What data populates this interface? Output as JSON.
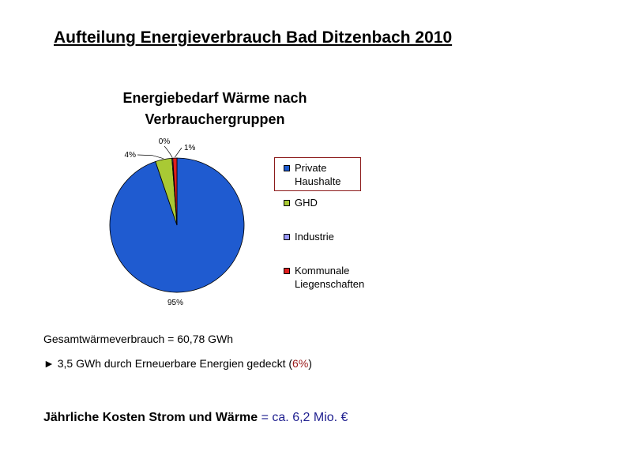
{
  "slide": {
    "title": "Aufteilung Energieverbrauch Bad Ditzenbach 2010"
  },
  "chart_data": {
    "type": "pie",
    "title_line1": "Energiebedarf Wärme nach",
    "title_line2": "Verbrauchergruppen",
    "slices": [
      {
        "name": "Private Haushalte",
        "label_line1": "Private",
        "label_line2": "Haushalte",
        "value": 95,
        "pct_label": "95%",
        "color": "#1f5bd0"
      },
      {
        "name": "GHD",
        "label_line1": "GHD",
        "label_line2": "",
        "value": 4,
        "pct_label": "4%",
        "color": "#a9c934"
      },
      {
        "name": "Industrie",
        "label_line1": "Industrie",
        "label_line2": "",
        "value": 0.2,
        "pct_label": "0%",
        "color": "#9999ff"
      },
      {
        "name": "Kommunale Liegenschaften",
        "label_line1": "Kommunale",
        "label_line2": "Liegenschaften",
        "value": 1,
        "pct_label": "1%",
        "color": "#e01e1e"
      }
    ],
    "legend_position": "right",
    "highlighted_legend_item": "Private Haushalte"
  },
  "summary": {
    "total_line": "Gesamtwärmeverbrauch = 60,78 GWh",
    "renewable_prefix": "► 3,5 GWh durch Erneuerbare Energien gedeckt (",
    "renewable_pct": "6%",
    "renewable_suffix": ")",
    "costs_label": "Jährliche Kosten Strom und Wärme",
    "costs_value": " = ca. 6,2 Mio. €"
  },
  "colors": {
    "highlight_border": "#8b1a1a",
    "accent_red": "#9a1b1b",
    "costs_blue": "#1f1f8f"
  }
}
